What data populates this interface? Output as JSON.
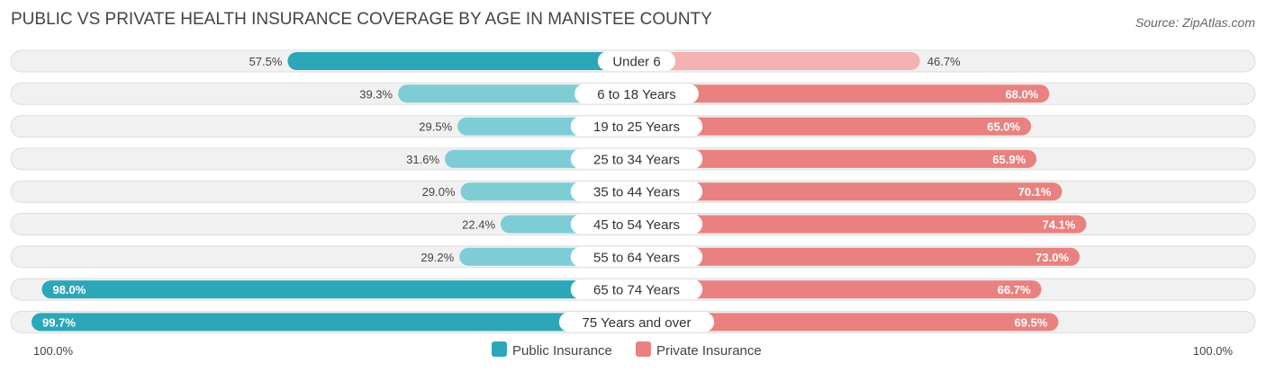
{
  "chart_data": {
    "type": "bar",
    "orientation": "horizontal-diverging",
    "title": "PUBLIC VS PRIVATE HEALTH INSURANCE COVERAGE BY AGE IN MANISTEE COUNTY",
    "source": "Source: ZipAtlas.com",
    "categories": [
      "Under 6",
      "6 to 18 Years",
      "19 to 25 Years",
      "25 to 34 Years",
      "35 to 44 Years",
      "45 to 54 Years",
      "55 to 64 Years",
      "65 to 74 Years",
      "75 Years and over"
    ],
    "series": [
      {
        "name": "Public Insurance",
        "color": "#2ba7b8",
        "values": [
          57.5,
          39.3,
          29.5,
          31.6,
          29.0,
          22.4,
          29.2,
          98.0,
          99.7
        ],
        "labels": [
          "57.5%",
          "39.3%",
          "29.5%",
          "31.6%",
          "29.0%",
          "22.4%",
          "29.2%",
          "98.0%",
          "99.7%"
        ]
      },
      {
        "name": "Private Insurance",
        "color": "#e8817f",
        "values": [
          46.7,
          68.0,
          65.0,
          65.9,
          70.1,
          74.1,
          73.0,
          66.7,
          69.5
        ],
        "labels": [
          "46.7%",
          "68.0%",
          "65.0%",
          "65.9%",
          "70.1%",
          "74.1%",
          "73.0%",
          "66.7%",
          "69.5%"
        ]
      }
    ],
    "axis": {
      "left_label": "100.0%",
      "right_label": "100.0%",
      "range": [
        0,
        100
      ]
    },
    "colors": {
      "public_strong": "#2ba7b8",
      "public_light": "#7ecdd6",
      "private_strong": "#e8817f",
      "private_light": "#f2b3b2",
      "track": "#f1f1f1",
      "track_border": "#dddddd"
    },
    "legend": {
      "position": "bottom-center"
    }
  }
}
